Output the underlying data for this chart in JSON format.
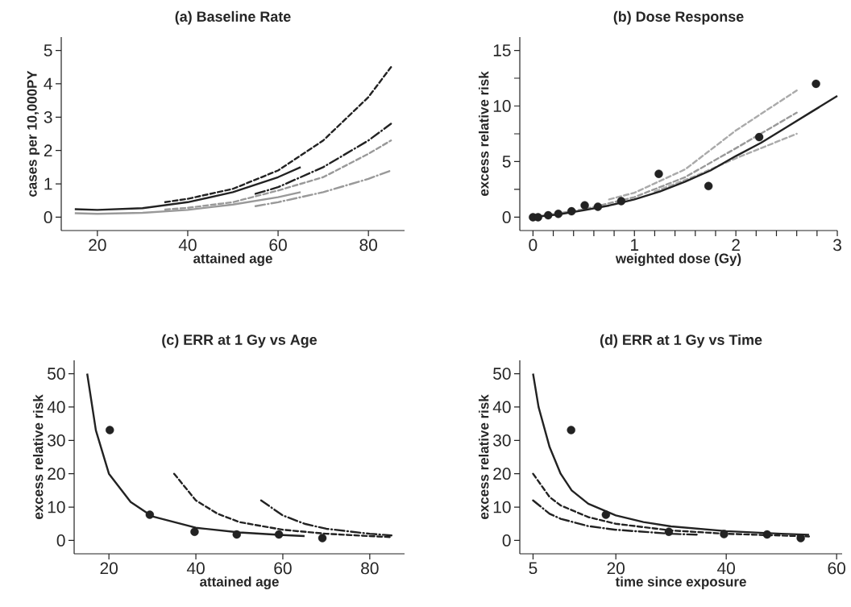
{
  "chart_data": [
    {
      "type": "line",
      "title": "(a) Baseline Rate",
      "xlabel": "attained age",
      "ylabel": "cases per 10,000PY",
      "xlim": [
        12,
        88
      ],
      "ylim": [
        -0.4,
        5.4
      ],
      "xticks": [
        20,
        40,
        60,
        80
      ],
      "yticks": [
        0,
        1,
        2,
        3,
        4,
        5
      ],
      "series": [
        {
          "color": "#222222",
          "line_style": "solid",
          "x": [
            15,
            20,
            30,
            40,
            50,
            60,
            65
          ],
          "values": [
            0.24,
            0.22,
            0.27,
            0.45,
            0.75,
            1.2,
            1.5
          ]
        },
        {
          "color": "#222222",
          "line_style": "dashed",
          "x": [
            35,
            40,
            50,
            60,
            70,
            80,
            85
          ],
          "values": [
            0.45,
            0.55,
            0.85,
            1.4,
            2.3,
            3.6,
            4.5
          ]
        },
        {
          "color": "#222222",
          "line_style": "dashdot",
          "x": [
            55,
            60,
            70,
            80,
            85
          ],
          "values": [
            0.7,
            0.9,
            1.5,
            2.3,
            2.8
          ]
        },
        {
          "color": "#999999",
          "line_style": "solid",
          "x": [
            15,
            20,
            30,
            40,
            50,
            60,
            65
          ],
          "values": [
            0.12,
            0.1,
            0.13,
            0.22,
            0.38,
            0.6,
            0.75
          ]
        },
        {
          "color": "#999999",
          "line_style": "dashed",
          "x": [
            35,
            40,
            50,
            60,
            70,
            80,
            85
          ],
          "values": [
            0.23,
            0.28,
            0.45,
            0.8,
            1.2,
            1.9,
            2.3
          ]
        },
        {
          "color": "#999999",
          "line_style": "dashdot",
          "x": [
            55,
            60,
            70,
            80,
            85
          ],
          "values": [
            0.33,
            0.45,
            0.75,
            1.15,
            1.4
          ]
        }
      ]
    },
    {
      "type": "line",
      "title": "(b) Dose Response",
      "xlabel": "weighted dose (Gy)",
      "ylabel": "excess relative risk",
      "xlim": [
        -0.13,
        3.0
      ],
      "ylim": [
        -1.2,
        16.2
      ],
      "xticks": [
        0,
        {
          "value": 0.2,
          "label": null
        },
        {
          "value": 0.4,
          "label": null
        },
        {
          "value": 0.6,
          "label": null
        },
        {
          "value": 0.8,
          "label": null
        },
        1,
        {
          "value": 1.2,
          "label": null
        },
        {
          "value": 1.4,
          "label": null
        },
        {
          "value": 1.6,
          "label": null
        },
        {
          "value": 1.8,
          "label": null
        },
        2,
        {
          "value": 2.2,
          "label": null
        },
        {
          "value": 2.4,
          "label": null
        },
        {
          "value": 2.6,
          "label": null
        },
        {
          "value": 2.8,
          "label": null
        },
        3
      ],
      "yticks": [
        0,
        {
          "value": 2.5,
          "label": null
        },
        5,
        {
          "value": 7.5,
          "label": null
        },
        10,
        {
          "value": 12.5,
          "label": null
        },
        15
      ],
      "series": [
        {
          "color": "#999999",
          "line_style": "dashed",
          "x": [
            0,
            0.5,
            1,
            1.5,
            2,
            2.6
          ],
          "values": [
            0,
            0.7,
            1.8,
            3.6,
            6.2,
            9.4
          ]
        },
        {
          "color": "#aaaaaa",
          "line_style": "dashed",
          "x": [
            0.75,
            1,
            1.5,
            2,
            2.6
          ],
          "values": [
            1.6,
            2.2,
            4.3,
            7.8,
            11.4
          ]
        },
        {
          "color": "#aaaaaa",
          "line_style": "dashed",
          "x": [
            1.2,
            1.6,
            2,
            2.6
          ],
          "values": [
            2.3,
            3.7,
            5.3,
            7.5
          ]
        },
        {
          "color": "#222222",
          "line_style": "solid",
          "x": [
            0,
            0.25,
            0.5,
            0.75,
            1,
            1.25,
            1.5,
            1.75,
            2,
            2.25,
            2.5,
            2.75,
            3
          ],
          "values": [
            0,
            0.25,
            0.62,
            1.05,
            1.6,
            2.3,
            3.2,
            4.2,
            5.5,
            6.7,
            8.1,
            9.5,
            10.9
          ]
        },
        {
          "type": "scatter",
          "color": "#222222",
          "marker": "circle",
          "x": [
            0,
            0.05,
            0.15,
            0.25,
            0.38,
            0.51,
            0.64,
            0.87,
            1.24,
            1.73,
            2.23,
            2.79
          ],
          "values": [
            0,
            0,
            0.17,
            0.3,
            0.53,
            1.06,
            0.94,
            1.45,
            3.9,
            2.8,
            7.2,
            12
          ]
        }
      ]
    },
    {
      "type": "line",
      "title": "(c) ERR at 1 Gy vs Age",
      "xlabel": "attained age",
      "ylabel": "excess relative risk",
      "xlim": [
        12,
        88
      ],
      "ylim": [
        -4,
        54
      ],
      "xticks": [
        20,
        40,
        60,
        80
      ],
      "yticks": [
        0,
        10,
        20,
        30,
        40,
        50
      ],
      "series": [
        {
          "color": "#222222",
          "line_style": "solid",
          "x": [
            15,
            17,
            20,
            25,
            30,
            40,
            50,
            60,
            65
          ],
          "values": [
            50,
            33,
            20,
            11.5,
            7.2,
            3.8,
            2.4,
            1.6,
            1.3
          ]
        },
        {
          "color": "#222222",
          "line_style": "dashed",
          "x": [
            35,
            40,
            45,
            50,
            60,
            70,
            80,
            85
          ],
          "values": [
            20,
            12,
            8,
            5.5,
            3.2,
            2,
            1.3,
            1
          ]
        },
        {
          "color": "#222222",
          "line_style": "dashdot",
          "x": [
            55,
            60,
            65,
            70,
            80,
            85
          ],
          "values": [
            12,
            7.5,
            5,
            3.5,
            2,
            1.5
          ]
        },
        {
          "type": "scatter",
          "color": "#222222",
          "marker": "circle",
          "x": [
            20.2,
            29.4,
            39.7,
            49.4,
            59.1,
            69.1
          ],
          "values": [
            33.1,
            7.7,
            2.6,
            1.8,
            1.8,
            0.7
          ]
        }
      ]
    },
    {
      "type": "line",
      "title": "(d) ERR at 1 Gy vs Time",
      "xlabel": "time since exposure",
      "ylabel": "excess relative risk",
      "xlim": [
        2.6,
        61
      ],
      "ylim": [
        -4,
        54
      ],
      "xticks": [
        5,
        20,
        40,
        60
      ],
      "yticks": [
        0,
        10,
        20,
        30,
        40,
        50
      ],
      "series": [
        {
          "color": "#222222",
          "line_style": "solid",
          "x": [
            5,
            6,
            8,
            10,
            12,
            15,
            20,
            25,
            30,
            40,
            50,
            55
          ],
          "values": [
            50,
            40,
            28,
            20,
            15,
            11,
            7.5,
            5.5,
            4.2,
            2.8,
            2,
            1.7
          ]
        },
        {
          "color": "#222222",
          "line_style": "dashed",
          "x": [
            5,
            8,
            10,
            15,
            20,
            30,
            40,
            55
          ],
          "values": [
            20,
            13,
            10.5,
            7,
            5,
            3,
            2,
            1.2
          ]
        },
        {
          "color": "#222222",
          "line_style": "dashdot",
          "x": [
            5,
            8,
            10,
            15,
            20,
            30,
            35
          ],
          "values": [
            12,
            8,
            6.5,
            4.3,
            3.2,
            2,
            1.7
          ]
        },
        {
          "type": "scatter",
          "color": "#222222",
          "marker": "circle",
          "x": [
            11.9,
            18.2,
            29.6,
            39.6,
            47.4,
            53.5
          ],
          "values": [
            33.1,
            7.7,
            2.6,
            1.9,
            1.8,
            0.7
          ]
        }
      ]
    }
  ]
}
